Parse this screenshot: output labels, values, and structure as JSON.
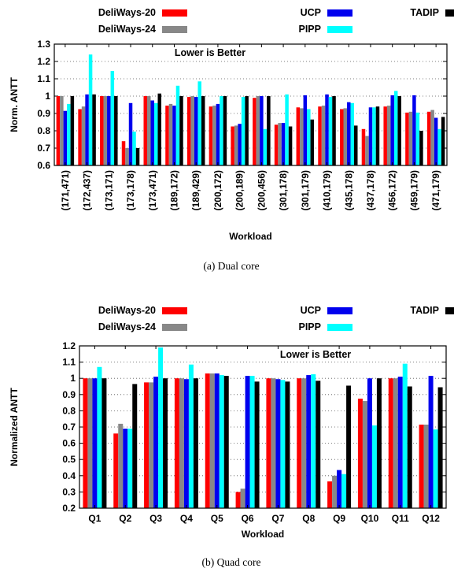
{
  "chart_data": [
    {
      "type": "bar",
      "caption": "(a)  Dual core",
      "annotation": "Lower is Better",
      "ylabel": "Norm. ANTT",
      "xlabel": "Workload",
      "ylim": [
        0.6,
        1.3
      ],
      "yticks": [
        "0.6",
        "0.7",
        "0.8",
        "0.9",
        "1",
        "1.1",
        "1.2",
        "1.3"
      ],
      "grid": true,
      "legend_position": "top",
      "categories": [
        "(171,471)",
        "(172,437)",
        "(173,171)",
        "(173,178)",
        "(173,471)",
        "(189,172)",
        "(189,429)",
        "(200,172)",
        "(200,189)",
        "(200,456)",
        "(301,178)",
        "(301,179)",
        "(410,179)",
        "(435,178)",
        "(437,178)",
        "(456,172)",
        "(459,179)",
        "(471,179)"
      ],
      "series": [
        {
          "name": "DeliWays-20",
          "color": "#ff0000",
          "values": [
            1.0,
            0.925,
            1.0,
            0.74,
            1.0,
            0.945,
            0.995,
            0.94,
            0.825,
            0.99,
            0.835,
            0.935,
            0.94,
            0.925,
            0.81,
            0.94,
            0.905,
            0.91
          ]
        },
        {
          "name": "DeliWays-24",
          "color": "#888888",
          "values": [
            1.0,
            0.94,
            1.0,
            0.7,
            1.0,
            0.955,
            1.0,
            0.945,
            0.83,
            1.0,
            0.845,
            0.93,
            0.945,
            0.93,
            0.77,
            0.945,
            0.91,
            0.92
          ]
        },
        {
          "name": "UCP",
          "color": "#0000ee",
          "values": [
            0.915,
            1.01,
            1.0,
            0.96,
            0.975,
            0.945,
            0.995,
            0.955,
            0.84,
            1.0,
            0.845,
            1.005,
            1.01,
            0.965,
            0.935,
            1.005,
            1.005,
            0.875
          ]
        },
        {
          "name": "PIPP",
          "color": "#00ffff",
          "values": [
            0.955,
            1.24,
            1.145,
            0.795,
            0.96,
            1.06,
            1.085,
            1.0,
            0.995,
            0.81,
            1.01,
            0.925,
            0.995,
            0.96,
            0.935,
            1.03,
            0.905,
            0.81
          ]
        },
        {
          "name": "TADIP",
          "color": "#000000",
          "values": [
            1.0,
            1.01,
            1.0,
            0.7,
            1.015,
            1.0,
            1.0,
            1.0,
            1.0,
            1.0,
            0.825,
            0.865,
            1.0,
            0.83,
            0.94,
            1.0,
            0.8,
            0.88
          ]
        }
      ]
    },
    {
      "type": "bar",
      "caption": "(b)  Quad core",
      "annotation": "Lower is Better",
      "ylabel": "Normalized ANTT",
      "xlabel": "Workload",
      "ylim": [
        0.2,
        1.2
      ],
      "yticks": [
        "0.2",
        "0.3",
        "0.4",
        "0.5",
        "0.6",
        "0.7",
        "0.8",
        "0.9",
        "1",
        "1.1",
        "1.2"
      ],
      "grid": true,
      "legend_position": "top",
      "categories": [
        "Q1",
        "Q2",
        "Q3",
        "Q4",
        "Q5",
        "Q6",
        "Q7",
        "Q8",
        "Q9",
        "Q10",
        "Q11",
        "Q12"
      ],
      "series": [
        {
          "name": "DeliWays-20",
          "color": "#ff0000",
          "values": [
            1.0,
            0.66,
            0.975,
            1.0,
            1.03,
            0.3,
            1.0,
            1.0,
            0.365,
            0.875,
            1.0,
            0.715
          ]
        },
        {
          "name": "DeliWays-24",
          "color": "#888888",
          "values": [
            1.0,
            0.72,
            0.975,
            1.0,
            1.03,
            0.32,
            1.0,
            1.0,
            0.4,
            0.86,
            1.0,
            0.715
          ]
        },
        {
          "name": "UCP",
          "color": "#0000ee",
          "values": [
            1.0,
            0.69,
            1.01,
            0.995,
            1.03,
            1.015,
            0.995,
            1.02,
            0.435,
            1.0,
            1.01,
            1.015
          ]
        },
        {
          "name": "PIPP",
          "color": "#00ffff",
          "values": [
            1.07,
            0.69,
            1.19,
            1.085,
            1.02,
            1.015,
            0.99,
            1.025,
            0.41,
            0.71,
            1.09,
            0.685
          ]
        },
        {
          "name": "TADIP",
          "color": "#000000",
          "values": [
            1.0,
            0.965,
            1.0,
            1.0,
            1.015,
            0.98,
            0.98,
            0.985,
            0.955,
            1.0,
            0.95,
            0.945
          ]
        }
      ]
    }
  ]
}
